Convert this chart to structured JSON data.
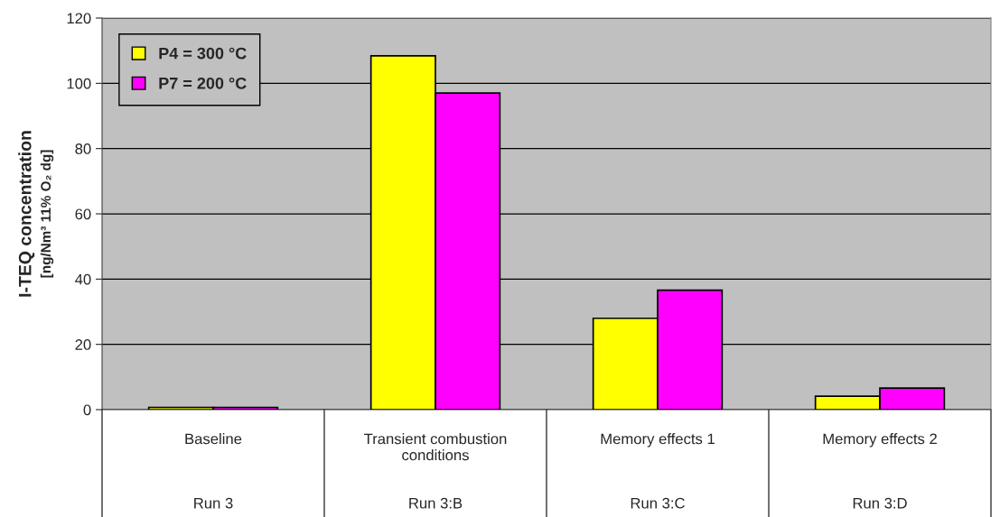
{
  "chart_data": {
    "type": "bar",
    "ylabel": "I-TEQ concentration\n[ng/Nm³ 11% O₂ dg]",
    "categories": [
      "Baseline",
      "Transient combustion conditions",
      "Memory effects 1",
      "Memory effects 2"
    ],
    "annotations": [
      "Run 3",
      "Run 3:B",
      "Run 3:C",
      "Run 3:D"
    ],
    "series": [
      {
        "name": "P4 = 300 °C",
        "color": "#ffff00",
        "values": [
          0.7,
          108.4,
          28.0,
          4.1
        ]
      },
      {
        "name": "P7 = 200 °C",
        "color": "#ff00ff",
        "values": [
          0.7,
          97.0,
          36.6,
          6.6
        ]
      }
    ],
    "ylim": [
      0,
      120
    ],
    "yticks": [
      0,
      20,
      40,
      60,
      80,
      100,
      120
    ],
    "grid": "y",
    "legend": "top left"
  }
}
